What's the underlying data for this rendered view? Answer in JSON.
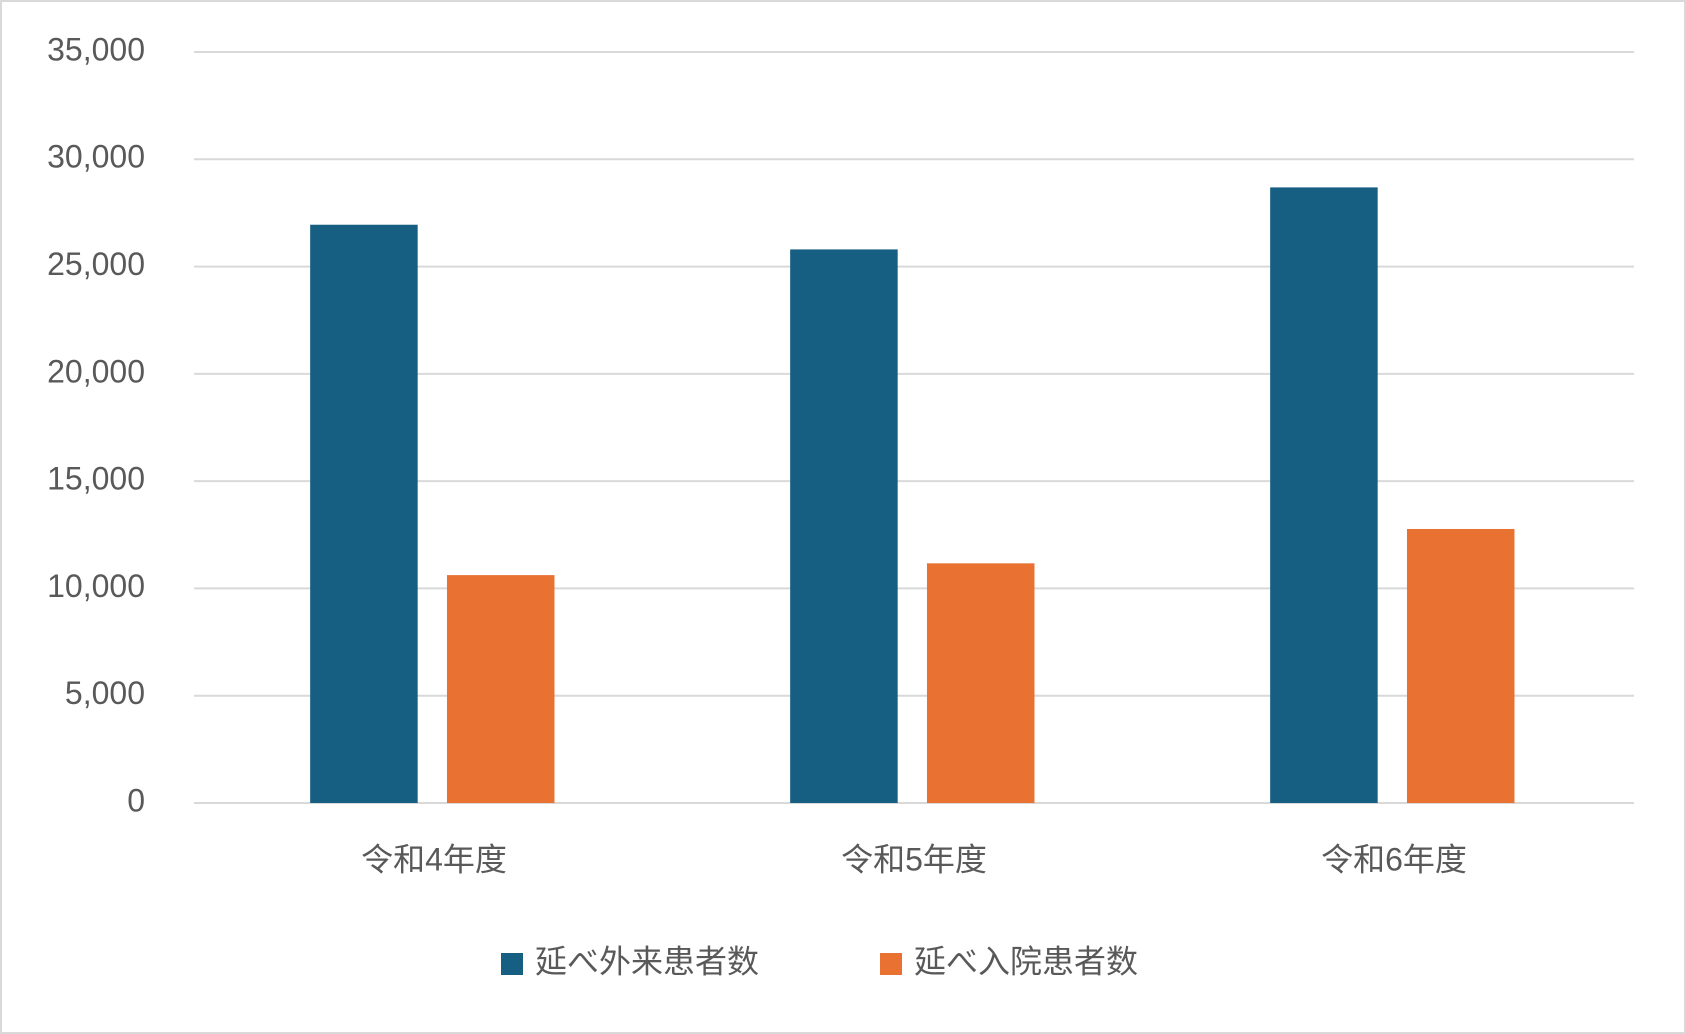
{
  "chart_data": {
    "type": "bar",
    "categories": [
      "令和4年度",
      "令和5年度",
      "令和6年度"
    ],
    "series": [
      {
        "name": "延べ外来患者数",
        "color": "#175f82",
        "values": [
          26950,
          25800,
          28690
        ]
      },
      {
        "name": "延べ入院患者数",
        "color": "#e97132",
        "values": [
          10620,
          11170,
          12770
        ]
      }
    ],
    "ylim": [
      0,
      35000
    ],
    "yticks": [
      0,
      {
        "value": 5000,
        "label": "5,000"
      },
      {
        "value": 10000,
        "label": "10,000"
      },
      {
        "value": 15000,
        "label": "15,000"
      },
      {
        "value": 20000,
        "label": "20,000"
      },
      {
        "value": 25000,
        "label": "25,000"
      },
      {
        "value": 30000,
        "label": "30,000"
      },
      {
        "value": 35000,
        "label": "35,000"
      }
    ],
    "grid": true,
    "legend": "bottom"
  }
}
